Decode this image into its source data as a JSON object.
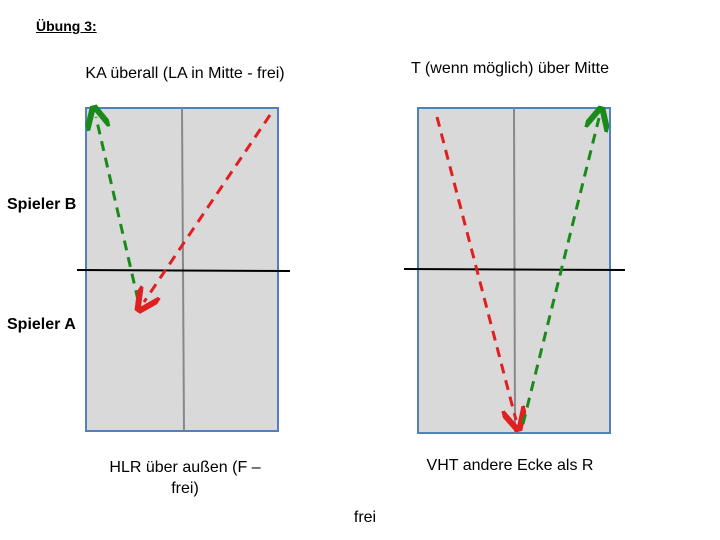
{
  "heading": "Übung 3:",
  "left": {
    "top_label": "KA überall (LA in Mitte - frei)",
    "bottom_label": "HLR über außen (F – frei)"
  },
  "right": {
    "top_label": "T (wenn möglich) über Mitte",
    "bottom_label": "VHT andere Ecke als R"
  },
  "players": {
    "b": "Spieler B",
    "a": "Spieler A"
  },
  "footer": "frei"
}
